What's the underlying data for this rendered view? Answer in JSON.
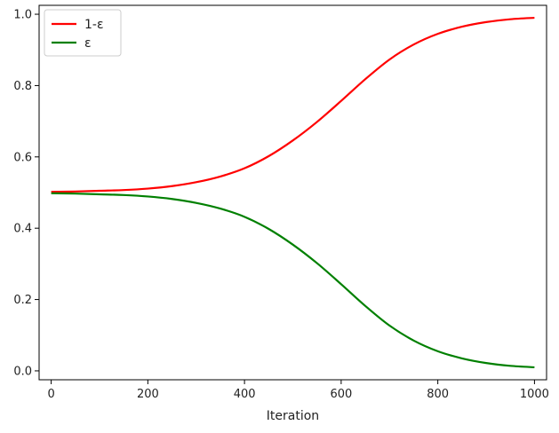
{
  "chart_data": {
    "type": "line",
    "title": "",
    "xlabel": "Iteration",
    "ylabel": "",
    "xlim": [
      -25,
      1025
    ],
    "ylim": [
      -0.025,
      1.025
    ],
    "xticks": [
      0,
      200,
      400,
      600,
      800,
      1000
    ],
    "yticks": [
      0.0,
      0.2,
      0.4,
      0.6,
      0.8,
      1.0
    ],
    "xtick_labels": [
      "0",
      "200",
      "400",
      "600",
      "800",
      "1000"
    ],
    "ytick_labels": [
      "0.0",
      "0.2",
      "0.4",
      "0.6",
      "0.8",
      "1.0"
    ],
    "grid": false,
    "legend_position": "top-left",
    "x": [
      0,
      50,
      100,
      150,
      200,
      250,
      300,
      350,
      400,
      450,
      500,
      550,
      600,
      650,
      700,
      750,
      800,
      850,
      900,
      950,
      1000
    ],
    "series": [
      {
        "name": "1-ε",
        "color": "#ff0000",
        "values": [
          0.502,
          0.503,
          0.505,
          0.507,
          0.511,
          0.518,
          0.529,
          0.545,
          0.568,
          0.602,
          0.646,
          0.698,
          0.757,
          0.818,
          0.873,
          0.915,
          0.945,
          0.965,
          0.978,
          0.986,
          0.99
        ]
      },
      {
        "name": "ε",
        "color": "#008000",
        "values": [
          0.498,
          0.497,
          0.495,
          0.493,
          0.489,
          0.482,
          0.471,
          0.455,
          0.432,
          0.398,
          0.354,
          0.302,
          0.243,
          0.182,
          0.127,
          0.085,
          0.055,
          0.035,
          0.022,
          0.014,
          0.01
        ]
      }
    ]
  }
}
